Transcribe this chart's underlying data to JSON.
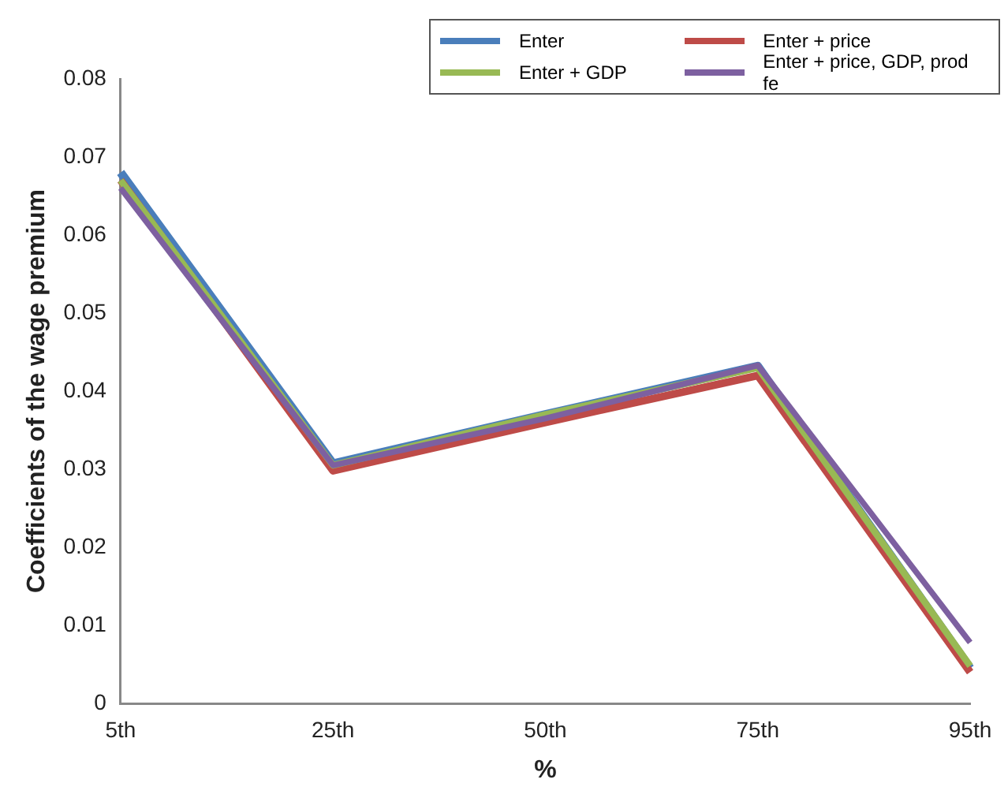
{
  "chart_data": {
    "type": "line",
    "xlabel": "%",
    "ylabel": "Coefficients of the wage premium",
    "categories": [
      "5th",
      "25th",
      "50th",
      "75th",
      "95th"
    ],
    "series": [
      {
        "name": "Enter",
        "color": "#4a7ebb",
        "values": [
          0.068,
          0.0307,
          0.037,
          0.0432,
          0.0045
        ]
      },
      {
        "name": "Enter + price",
        "color": "#be4b48",
        "values": [
          0.067,
          0.0298,
          0.036,
          0.042,
          0.004
        ]
      },
      {
        "name": "Enter + GDP",
        "color": "#98b954",
        "values": [
          0.067,
          0.0305,
          0.037,
          0.043,
          0.0048
        ]
      },
      {
        "name": "Enter + price, GDP, prod fe",
        "color": "#7d60a0",
        "values": [
          0.066,
          0.0305,
          0.0365,
          0.0433,
          0.0078
        ]
      }
    ],
    "ylim": [
      0,
      0.08
    ],
    "yticks": [
      0,
      0.01,
      0.02,
      0.03,
      0.04,
      0.05,
      0.06,
      0.07,
      0.08
    ],
    "grid": false,
    "legend": "top right",
    "marker": "none",
    "line_style": "solid"
  }
}
